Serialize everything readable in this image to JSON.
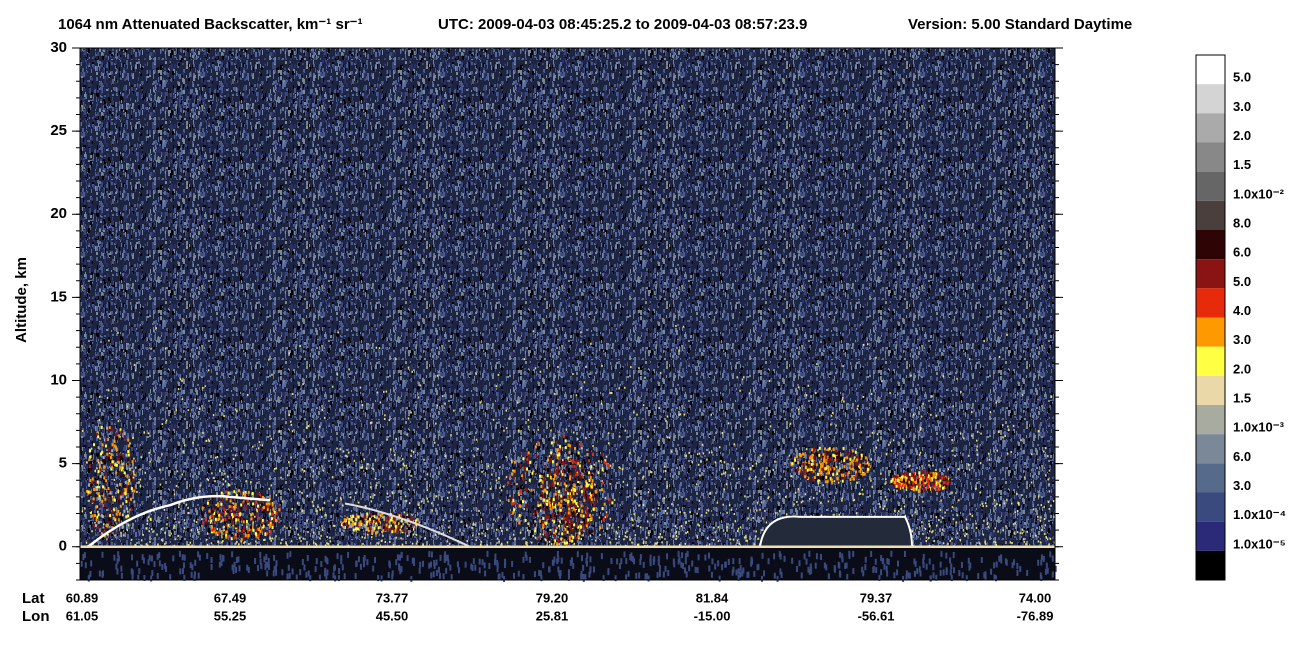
{
  "chart_data": {
    "type": "curtain",
    "title": "1064 nm Attenuated Backscatter, km⁻¹ sr⁻¹",
    "subtitle": "UTC:  2009-04-03 08:45:25.2  to  2009-04-03 08:57:23.9",
    "version": "Version: 5.00  Standard  Daytime",
    "ylabel": "Altitude, km",
    "ylim": [
      -2,
      30
    ],
    "yticks": [
      0,
      5,
      10,
      15,
      20,
      25,
      30
    ],
    "x_row_labels": [
      "Lat",
      "Lon"
    ],
    "lat": [
      "60.89",
      "67.49",
      "73.77",
      "79.20",
      "81.84",
      "79.37",
      "74.00"
    ],
    "lon": [
      "61.05",
      "55.25",
      "45.50",
      "25.81",
      "-15.00",
      "-56.61",
      "-76.89"
    ],
    "colorbar": {
      "colors": [
        "#ffffff",
        "#d4d4d4",
        "#aaaaaa",
        "#888888",
        "#666666",
        "#4a3f3c",
        "#2e0404",
        "#8a1414",
        "#e62a0a",
        "#ff9900",
        "#ffff44",
        "#ead8a8",
        "#a8aca0",
        "#7a8898",
        "#566b8c",
        "#3a4a7e",
        "#2a2a78",
        "#000000"
      ],
      "labels": [
        "5.0",
        "3.0",
        "2.0",
        "1.5",
        "1.0x10⁻²",
        "8.0",
        "6.0",
        "5.0",
        "4.0",
        "3.0",
        "2.0",
        "1.5",
        "1.0x10⁻³",
        "6.0",
        "3.0",
        "1.0x10⁻⁴",
        "1.0x10⁻⁵"
      ]
    }
  }
}
